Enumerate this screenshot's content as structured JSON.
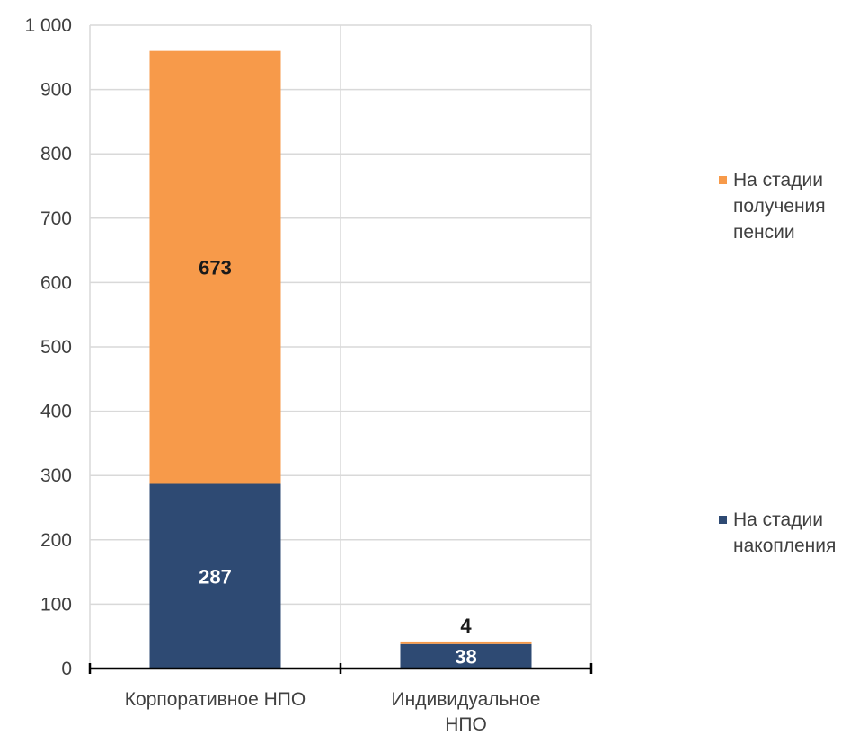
{
  "chart_data": {
    "type": "bar",
    "stacked": true,
    "categories": [
      "Корпоративное НПО",
      "Индивидуальное НПО"
    ],
    "series": [
      {
        "name": "На стадии накопления",
        "values": [
          287,
          38
        ],
        "color": "#2e4a73",
        "label_color": "#ffffff"
      },
      {
        "name": "На стадии получения пенсии",
        "values": [
          673,
          4
        ],
        "color": "#f79a4a",
        "label_color": "#1a1a1a"
      }
    ],
    "ylim": [
      0,
      1000
    ],
    "yticks": [
      0,
      100,
      200,
      300,
      400,
      500,
      600,
      700,
      800,
      900,
      1000
    ],
    "ytick_labels": [
      "0",
      "100",
      "200",
      "300",
      "400",
      "500",
      "600",
      "700",
      "800",
      "900",
      "1 000"
    ],
    "grid": true,
    "legend_position": "right",
    "title": "",
    "xlabel": "",
    "ylabel": ""
  }
}
